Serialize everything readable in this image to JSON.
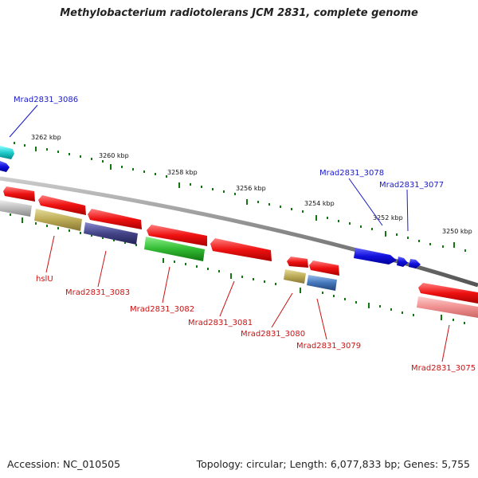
{
  "title": "Methylobacterium radiotolerans JCM 2831, complete genome",
  "footer": {
    "accession": "Accession: NC_010505",
    "summary": "Topology: circular; Length: 6,077,833 bp; Genes: 5,755"
  },
  "scale_labels": [
    "3262 kbp",
    "3260 kbp",
    "3258 kbp",
    "3256 kbp",
    "3254 kbp",
    "3252 kbp",
    "3250 kbp"
  ],
  "gene_labels_upper": [
    "Mrad2831_3086",
    "Mrad2831_3078",
    "Mrad2831_3077"
  ],
  "gene_labels_lower": [
    "hslU",
    "Mrad2831_3083",
    "Mrad2831_3082",
    "Mrad2831_3081",
    "Mrad2831_3080",
    "Mrad2831_3079",
    "Mrad2831_3075"
  ],
  "colors": {
    "backbone": "#888888",
    "tick": "#117711",
    "gene_red": "#ee1111",
    "gene_blue": "#1111dd",
    "gene_cyan": "#22cccc",
    "gene_green": "#33bb33",
    "gene_khaki": "#bbaa55",
    "gene_purple": "#444488",
    "gene_steelblue": "#4477bb",
    "gene_grey": "#bbbbbb",
    "gene_pink": "#f09090",
    "label_blue": "#1a1acc",
    "label_red": "#cc1111"
  }
}
